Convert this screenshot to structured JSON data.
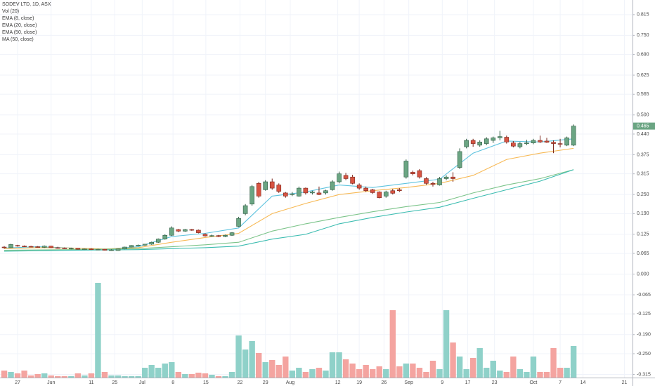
{
  "chart_data": {
    "type": "candlestick",
    "title": "SODEV LTD, 1D, ASX",
    "up_color": "#6ba583",
    "down_color": "#d75442",
    "candles": [
      [
        0.085,
        0.088,
        0.08,
        0.083
      ],
      [
        0.083,
        0.095,
        0.082,
        0.093
      ],
      [
        0.09,
        0.092,
        0.086,
        0.088
      ],
      [
        0.088,
        0.09,
        0.085,
        0.087
      ],
      [
        0.087,
        0.089,
        0.084,
        0.086
      ],
      [
        0.086,
        0.088,
        0.083,
        0.084
      ],
      [
        0.084,
        0.09,
        0.082,
        0.088
      ],
      [
        0.088,
        0.089,
        0.082,
        0.083
      ],
      [
        0.083,
        0.086,
        0.08,
        0.082
      ],
      [
        0.082,
        0.084,
        0.079,
        0.08
      ],
      [
        0.08,
        0.083,
        0.078,
        0.081
      ],
      [
        0.081,
        0.082,
        0.077,
        0.078
      ],
      [
        0.078,
        0.08,
        0.076,
        0.079
      ],
      [
        0.079,
        0.081,
        0.076,
        0.077
      ],
      [
        0.077,
        0.08,
        0.075,
        0.078
      ],
      [
        0.078,
        0.079,
        0.074,
        0.075
      ],
      [
        0.075,
        0.078,
        0.073,
        0.076
      ],
      [
        0.074,
        0.08,
        0.073,
        0.079
      ],
      [
        0.079,
        0.086,
        0.078,
        0.085
      ],
      [
        0.085,
        0.091,
        0.084,
        0.09
      ],
      [
        0.09,
        0.093,
        0.088,
        0.091
      ],
      [
        0.091,
        0.095,
        0.089,
        0.094
      ],
      [
        0.094,
        0.102,
        0.092,
        0.1
      ],
      [
        0.1,
        0.112,
        0.098,
        0.11
      ],
      [
        0.11,
        0.125,
        0.108,
        0.122
      ],
      [
        0.122,
        0.15,
        0.12,
        0.145
      ],
      [
        0.14,
        0.142,
        0.132,
        0.135
      ],
      [
        0.135,
        0.142,
        0.133,
        0.14
      ],
      [
        0.14,
        0.142,
        0.136,
        0.138
      ],
      [
        0.138,
        0.14,
        0.128,
        0.13
      ],
      [
        0.125,
        0.128,
        0.118,
        0.12
      ],
      [
        0.12,
        0.124,
        0.117,
        0.121
      ],
      [
        0.121,
        0.123,
        0.116,
        0.118
      ],
      [
        0.118,
        0.124,
        0.116,
        0.122
      ],
      [
        0.122,
        0.132,
        0.12,
        0.13
      ],
      [
        0.15,
        0.18,
        0.148,
        0.175
      ],
      [
        0.19,
        0.22,
        0.185,
        0.215
      ],
      [
        0.22,
        0.28,
        0.215,
        0.275
      ],
      [
        0.285,
        0.29,
        0.24,
        0.245
      ],
      [
        0.265,
        0.295,
        0.262,
        0.29
      ],
      [
        0.29,
        0.3,
        0.265,
        0.27
      ],
      [
        0.28,
        0.285,
        0.255,
        0.26
      ],
      [
        0.255,
        0.258,
        0.24,
        0.245
      ],
      [
        0.25,
        0.258,
        0.245,
        0.252
      ],
      [
        0.245,
        0.275,
        0.243,
        0.27
      ],
      [
        0.27,
        0.272,
        0.25,
        0.255
      ],
      [
        0.255,
        0.262,
        0.25,
        0.258
      ],
      [
        0.255,
        0.275,
        0.248,
        0.25
      ],
      [
        0.255,
        0.265,
        0.25,
        0.262
      ],
      [
        0.265,
        0.295,
        0.262,
        0.29
      ],
      [
        0.29,
        0.322,
        0.285,
        0.315
      ],
      [
        0.31,
        0.318,
        0.295,
        0.3
      ],
      [
        0.305,
        0.312,
        0.282,
        0.285
      ],
      [
        0.28,
        0.285,
        0.265,
        0.27
      ],
      [
        0.27,
        0.275,
        0.258,
        0.262
      ],
      [
        0.265,
        0.268,
        0.252,
        0.256
      ],
      [
        0.258,
        0.26,
        0.238,
        0.24
      ],
      [
        0.245,
        0.262,
        0.24,
        0.258
      ],
      [
        0.262,
        0.268,
        0.25,
        0.254
      ],
      [
        0.265,
        0.27,
        0.258,
        0.262
      ],
      [
        0.305,
        0.36,
        0.3,
        0.355
      ],
      [
        0.32,
        0.325,
        0.31,
        0.315
      ],
      [
        0.325,
        0.33,
        0.3,
        0.305
      ],
      [
        0.3,
        0.305,
        0.28,
        0.285
      ],
      [
        0.285,
        0.29,
        0.275,
        0.282
      ],
      [
        0.28,
        0.305,
        0.278,
        0.3
      ],
      [
        0.3,
        0.31,
        0.295,
        0.305
      ],
      [
        0.305,
        0.32,
        0.29,
        0.3
      ],
      [
        0.335,
        0.395,
        0.33,
        0.385
      ],
      [
        0.4,
        0.425,
        0.395,
        0.42
      ],
      [
        0.42,
        0.425,
        0.4,
        0.41
      ],
      [
        0.405,
        0.42,
        0.4,
        0.415
      ],
      [
        0.41,
        0.43,
        0.405,
        0.425
      ],
      [
        0.42,
        0.432,
        0.412,
        0.428
      ],
      [
        0.428,
        0.45,
        0.42,
        0.432
      ],
      [
        0.43,
        0.435,
        0.41,
        0.415
      ],
      [
        0.412,
        0.418,
        0.398,
        0.402
      ],
      [
        0.4,
        0.415,
        0.395,
        0.41
      ],
      [
        0.41,
        0.422,
        0.405,
        0.412
      ],
      [
        0.412,
        0.425,
        0.408,
        0.42
      ],
      [
        0.42,
        0.435,
        0.412,
        0.415
      ],
      [
        0.418,
        0.428,
        0.412,
        0.414
      ],
      [
        0.414,
        0.42,
        0.38,
        0.41
      ],
      [
        0.41,
        0.425,
        0.398,
        0.408
      ],
      [
        0.405,
        0.432,
        0.402,
        0.428
      ],
      [
        0.405,
        0.47,
        0.402,
        0.465
      ]
    ],
    "volume": {
      "name": "Vol (20)",
      "up_color": "#8fd1c9",
      "down_color": "#f4a4a0",
      "vlim": [
        0,
        150
      ],
      "values": [
        10,
        8,
        6,
        10,
        3,
        5,
        6,
        3,
        2,
        2,
        2,
        6,
        3,
        6,
        135,
        8,
        3,
        3,
        2,
        2,
        2,
        14,
        18,
        14,
        20,
        22,
        8,
        5,
        5,
        7,
        6,
        4,
        2,
        2,
        8,
        60,
        40,
        52,
        35,
        22,
        25,
        18,
        30,
        10,
        14,
        8,
        12,
        14,
        10,
        36,
        36,
        26,
        20,
        12,
        18,
        12,
        16,
        12,
        96,
        16,
        20,
        20,
        14,
        8,
        24,
        12,
        96,
        50,
        30,
        12,
        28,
        42,
        14,
        24,
        10,
        8,
        30,
        12,
        8,
        30,
        8,
        8,
        42,
        14,
        14,
        45
      ]
    },
    "indicators": [
      {
        "name": "EMA (8, close)",
        "color": "#5ec3de",
        "x": [
          0,
          5,
          10,
          15,
          20,
          25,
          30,
          35,
          40,
          45,
          50,
          55,
          60,
          65,
          70,
          75,
          80,
          85
        ],
        "values": [
          0.082,
          0.086,
          0.082,
          0.078,
          0.086,
          0.118,
          0.128,
          0.145,
          0.245,
          0.258,
          0.28,
          0.272,
          0.285,
          0.298,
          0.38,
          0.418,
          0.415,
          0.425
        ]
      },
      {
        "name": "EMA (20, close)",
        "color": "#f7b955",
        "x": [
          0,
          5,
          10,
          15,
          20,
          25,
          30,
          35,
          40,
          45,
          50,
          55,
          60,
          65,
          70,
          75,
          80,
          85
        ],
        "values": [
          0.08,
          0.083,
          0.082,
          0.079,
          0.083,
          0.1,
          0.115,
          0.128,
          0.19,
          0.222,
          0.25,
          0.262,
          0.272,
          0.285,
          0.31,
          0.36,
          0.38,
          0.395
        ]
      },
      {
        "name": "EMA (50, close)",
        "color": "#7cc48a",
        "x": [
          0,
          10,
          20,
          30,
          35,
          40,
          45,
          50,
          55,
          60,
          65,
          70,
          75,
          80,
          85
        ],
        "values": [
          0.075,
          0.077,
          0.08,
          0.092,
          0.1,
          0.135,
          0.158,
          0.178,
          0.196,
          0.212,
          0.225,
          0.255,
          0.28,
          0.3,
          0.328
        ]
      },
      {
        "name": "MA (50, close)",
        "color": "#3bbcb0",
        "x": [
          0,
          10,
          20,
          30,
          35,
          40,
          45,
          50,
          55,
          60,
          65,
          70,
          75,
          80,
          85
        ],
        "values": [
          0.072,
          0.075,
          0.077,
          0.083,
          0.088,
          0.11,
          0.125,
          0.158,
          0.178,
          0.195,
          0.21,
          0.238,
          0.265,
          0.292,
          0.328
        ]
      }
    ],
    "last_price": 0.465,
    "xlim": [
      -0.63,
      93.8
    ],
    "xticks": [
      {
        "value": 2,
        "label": "27"
      },
      {
        "value": 7,
        "label": "Jun"
      },
      {
        "value": 13,
        "label": "11"
      },
      {
        "value": 16.5,
        "label": "25"
      },
      {
        "value": 20.6,
        "label": "Jul"
      },
      {
        "value": 25.2,
        "label": "8"
      },
      {
        "value": 30.1,
        "label": "15"
      },
      {
        "value": 35.2,
        "label": "22"
      },
      {
        "value": 39,
        "label": "29"
      },
      {
        "value": 42.7,
        "label": "Aug"
      },
      {
        "value": 49.8,
        "label": "12"
      },
      {
        "value": 53,
        "label": "19"
      },
      {
        "value": 56.7,
        "label": "26"
      },
      {
        "value": 60.4,
        "label": "Sep"
      },
      {
        "value": 65.4,
        "label": "9"
      },
      {
        "value": 69.2,
        "label": "17"
      },
      {
        "value": 73.2,
        "label": "23"
      },
      {
        "value": 79,
        "label": "Oct"
      },
      {
        "value": 83,
        "label": "7"
      },
      {
        "value": 86.4,
        "label": "14"
      },
      {
        "value": 92.6,
        "label": "21"
      }
    ],
    "ylim": [
      -0.325,
      0.861
    ],
    "yticks": [
      0.815,
      {
        "value": 0.75,
        "label": "0.750"
      },
      {
        "value": 0.69,
        "label": "0.690"
      },
      0.625,
      0.565,
      {
        "value": 0.5,
        "label": "0.500"
      },
      {
        "value": 0.44,
        "label": "0.440"
      },
      0.375,
      0.315,
      {
        "value": 0.25,
        "label": "0.250"
      },
      {
        "value": 0.19,
        "label": "0.190"
      },
      0.125,
      0.065,
      {
        "value": 0,
        "label": "0.000"
      },
      -0.065,
      -0.125,
      {
        "value": -0.19,
        "label": "-0.190"
      },
      {
        "value": -0.25,
        "label": "-0.250"
      },
      -0.315
    ],
    "grid": true
  }
}
